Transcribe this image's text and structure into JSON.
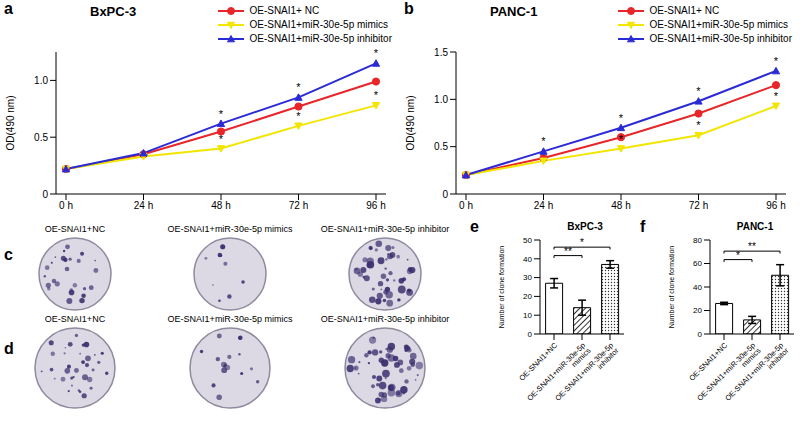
{
  "chart_data": [
    {
      "panel": "a",
      "type": "line",
      "title": "BxPC-3",
      "y_label": "OD(490 nm)",
      "legend": "upper right",
      "categories": [
        "0 h",
        "24 h",
        "48 h",
        "72 h",
        "96 h"
      ],
      "ylim": [
        0,
        1.25
      ],
      "yticks": [
        0,
        0.5,
        {
          "value": 1,
          "label": "1.0"
        }
      ],
      "series": [
        {
          "name": "OE-SNAI1+ NC",
          "color": "#e8262a",
          "marker": "circle",
          "values": [
            0.22,
            0.35,
            0.55,
            0.77,
            0.99
          ]
        },
        {
          "name": "OE-SNAI1+miR-30e-5p mimics",
          "color": "#f2e600",
          "marker": "triangle_down",
          "values": [
            0.22,
            0.33,
            0.4,
            0.6,
            0.78
          ],
          "annotations": [
            null,
            null,
            "*",
            "*",
            "*"
          ]
        },
        {
          "name": "OE-SNAI1+miR-30e-5p inhibitor",
          "color": "#2b2bd6",
          "marker": "triangle",
          "values": [
            0.22,
            0.36,
            0.62,
            0.85,
            1.15
          ],
          "annotations": [
            null,
            null,
            "*",
            "*",
            "*"
          ]
        }
      ]
    },
    {
      "panel": "b",
      "type": "line",
      "title": "PANC-1",
      "y_label": "OD(490 nm)",
      "legend": "upper right",
      "categories": [
        "0 h",
        "24 h",
        "48 h",
        "72 h",
        "96 h"
      ],
      "ylim": [
        0,
        1.5
      ],
      "yticks": [
        0,
        0.5,
        {
          "value": 1,
          "label": "1.0"
        },
        1.5
      ],
      "series": [
        {
          "name": "OE-SNAI1+ NC",
          "color": "#e8262a",
          "marker": "circle",
          "values": [
            0.2,
            0.38,
            0.6,
            0.85,
            1.15
          ]
        },
        {
          "name": "OE-SNAI1+miR-30e-5p mimics",
          "color": "#f2e600",
          "marker": "triangle_down",
          "values": [
            0.2,
            0.35,
            0.48,
            0.62,
            0.93
          ],
          "annotations": [
            null,
            null,
            "*",
            "*",
            "*"
          ]
        },
        {
          "name": "OE-SNAI1+miR-30e-5p inhibitor",
          "color": "#2b2bd6",
          "marker": "triangle",
          "values": [
            0.2,
            0.45,
            0.7,
            0.98,
            1.3
          ],
          "annotations": [
            null,
            "*",
            "*",
            "*",
            "*"
          ]
        }
      ]
    },
    {
      "panel": "e",
      "type": "bar",
      "title": "BxPC-3",
      "y_label": "Number of clone formation",
      "categories": [
        "OE-SNAI1+NC",
        "OE-SNAI1+miR-30e-5p mimics",
        "OE-SNAI1+miR-30e-5p inhibitor"
      ],
      "values": [
        27,
        14,
        37
      ],
      "errors": [
        2.5,
        4,
        2
      ],
      "color": "#000000",
      "ylim": [
        0,
        50
      ],
      "yticks": [
        0,
        10,
        20,
        30,
        40,
        50
      ],
      "comparisons": [
        {
          "pair": [
            "OE-SNAI1+NC",
            "OE-SNAI1+miR-30e-5p mimics"
          ],
          "label": "**"
        },
        {
          "pair": [
            "OE-SNAI1+NC",
            "OE-SNAI1+miR-30e-5p inhibitor"
          ],
          "label": "*"
        }
      ]
    },
    {
      "panel": "f",
      "type": "bar",
      "title": "PANC-1",
      "y_label": "Number of clone formation",
      "categories": [
        "OE-SNAI1+NC",
        "OE-SNAI1+miR-30e-5p mimics",
        "OE-SNAI1+miR-30e-5p inhibitor"
      ],
      "values": [
        26,
        12,
        50
      ],
      "errors": [
        1,
        3,
        9
      ],
      "color": "#000000",
      "ylim": [
        0,
        80
      ],
      "yticks": [
        0,
        20,
        40,
        60,
        80
      ],
      "comparisons": [
        {
          "pair": [
            "OE-SNAI1+NC",
            "OE-SNAI1+miR-30e-5p mimics"
          ],
          "label": "*"
        },
        {
          "pair": [
            "OE-SNAI1+NC",
            "OE-SNAI1+miR-30e-5p inhibitor"
          ],
          "label": "**"
        }
      ]
    }
  ],
  "plates": {
    "panels": [
      "c",
      "d"
    ],
    "labels": [
      "OE-SNAI1+NC",
      "OE-SNAI1+miR-30e-5p mimics",
      "OE-SNAI1+miR-30e-5p inhibitor"
    ]
  }
}
